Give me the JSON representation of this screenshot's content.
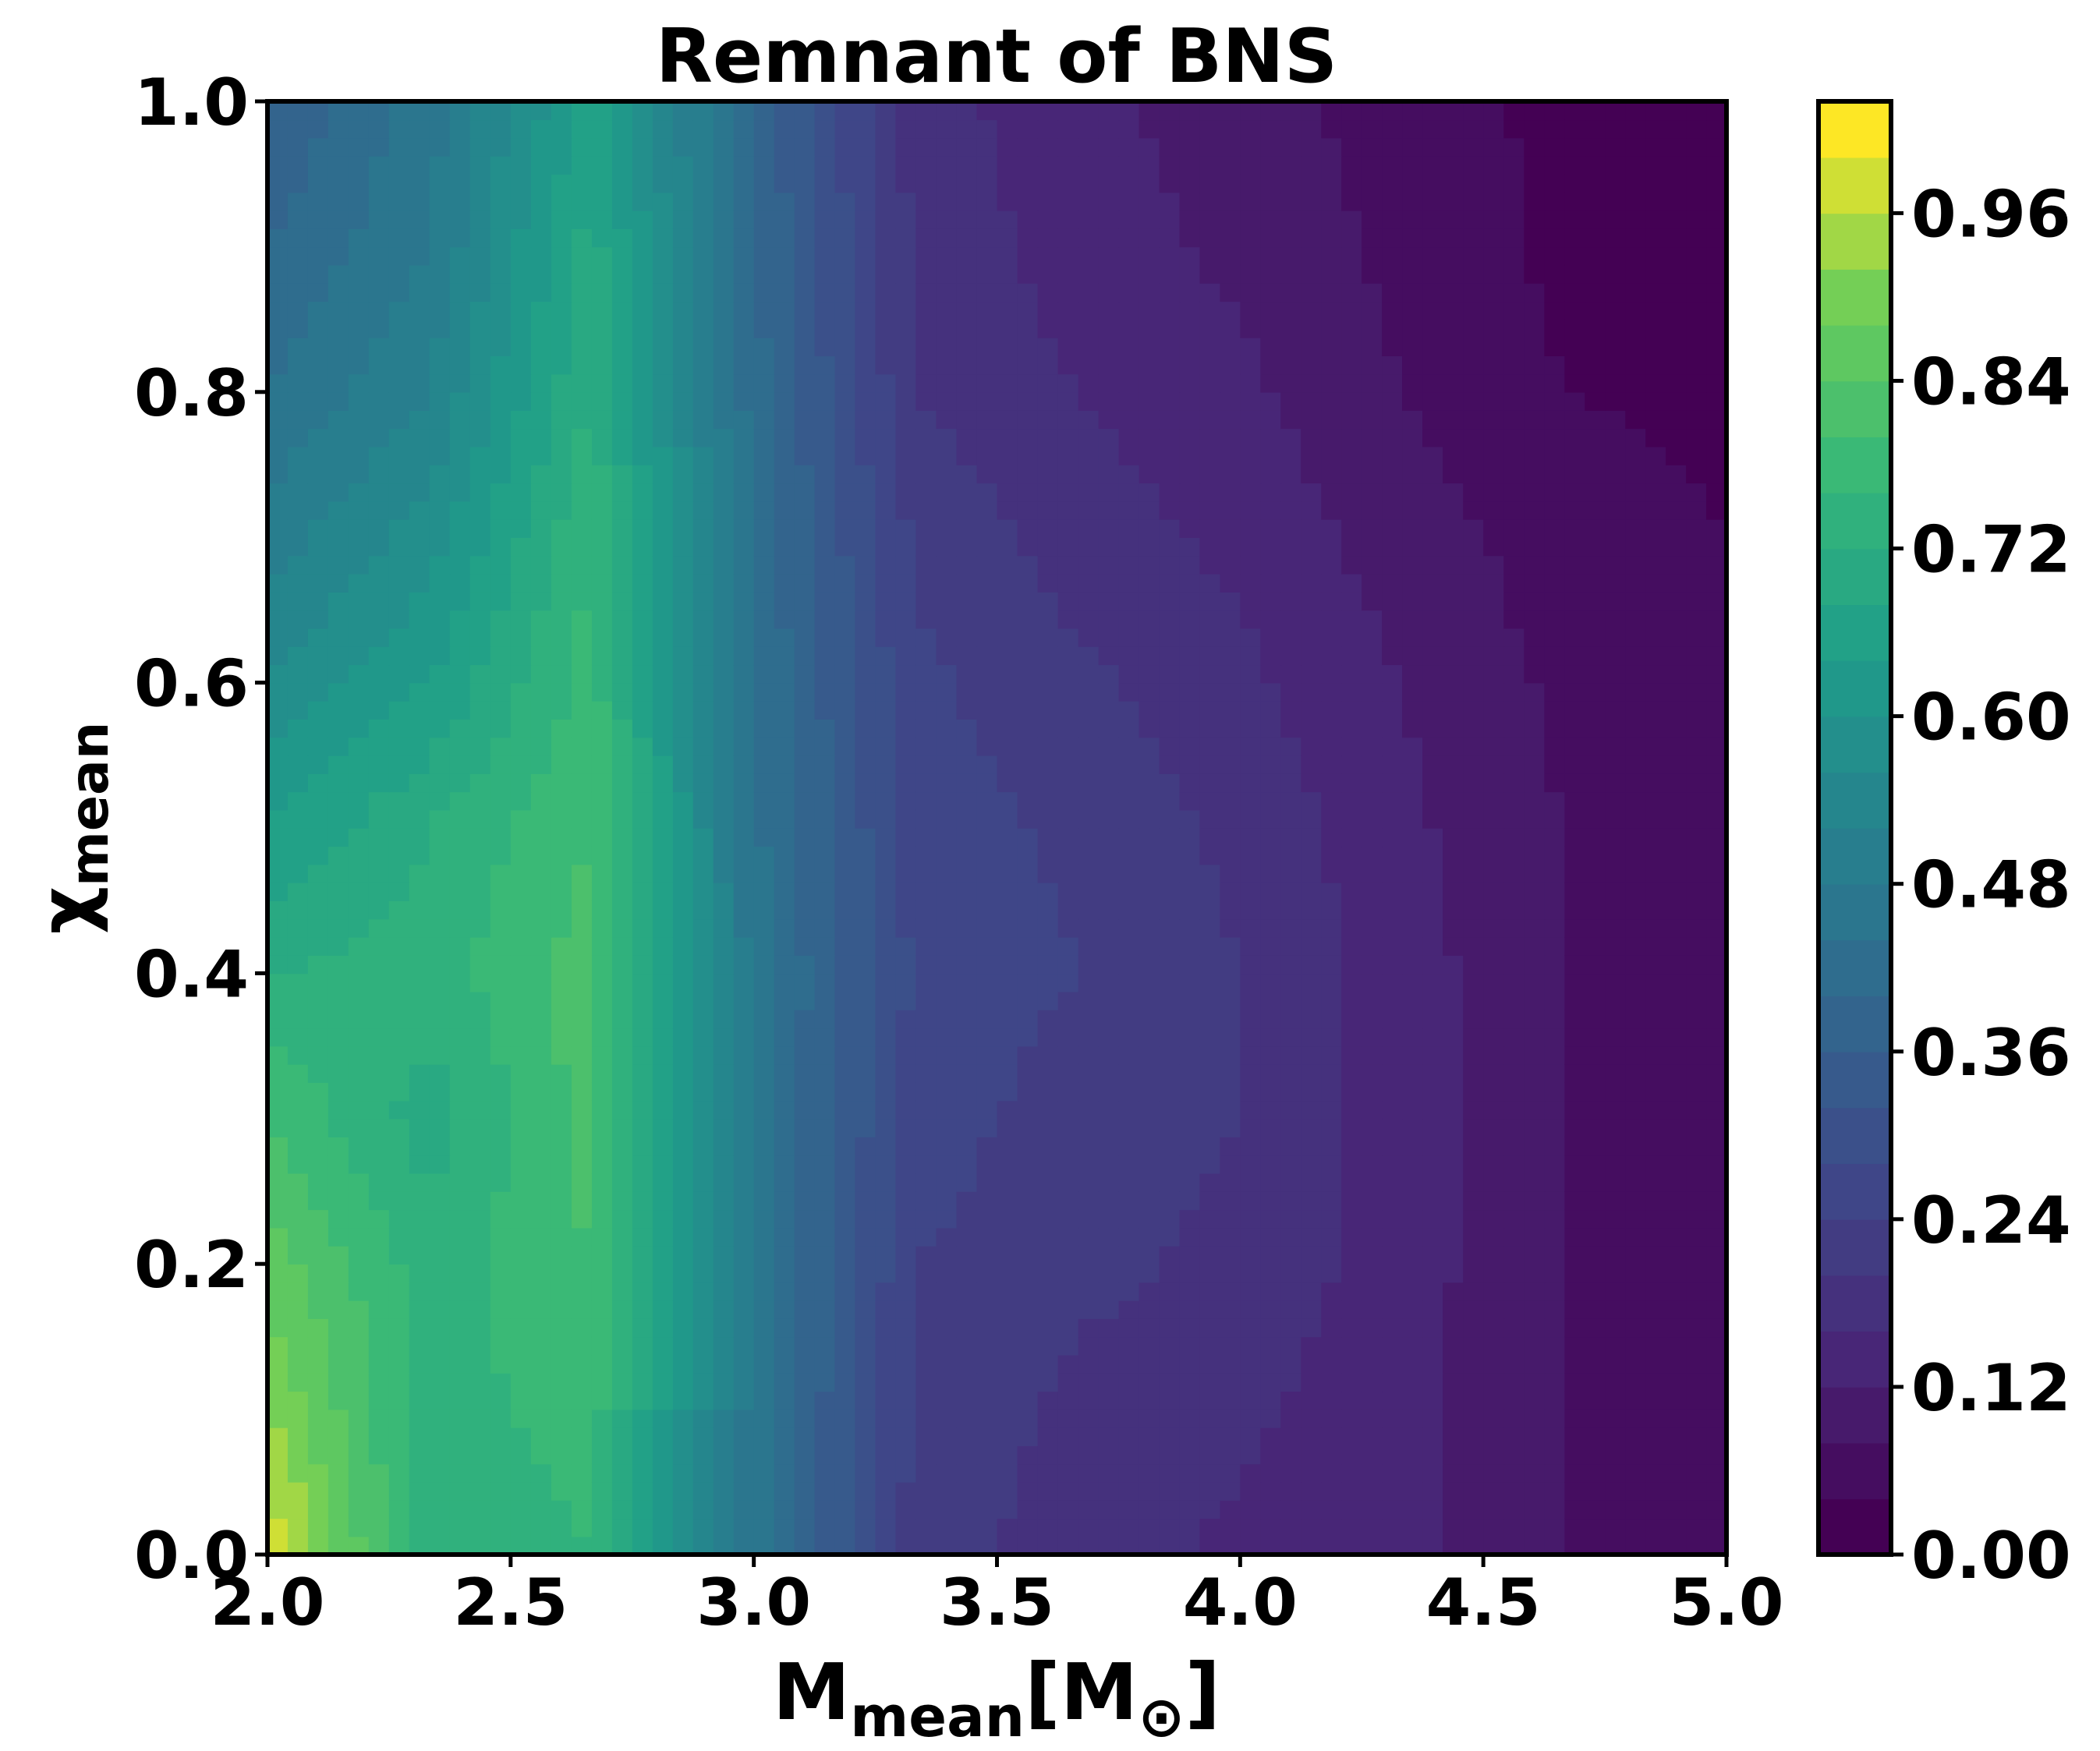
{
  "chart_data": {
    "type": "contourf",
    "title": "Remnant of BNS",
    "xlabel": [
      "M",
      "mean",
      "[M",
      "⊙",
      "]"
    ],
    "ylabel": [
      "χ",
      "mean"
    ],
    "colormap": "viridis",
    "x": [
      2.0,
      2.333,
      2.667,
      3.0,
      3.333,
      3.667,
      4.0,
      4.333,
      4.667,
      5.0
    ],
    "y": [
      0.0,
      0.1,
      0.2,
      0.3,
      0.4,
      0.5,
      0.6,
      0.7,
      0.8,
      0.9,
      1.0
    ],
    "z": [
      [
        1.0,
        0.72,
        0.76,
        0.46,
        0.22,
        0.18,
        0.15,
        0.13,
        0.08,
        0.07
      ],
      [
        0.92,
        0.74,
        0.78,
        0.46,
        0.23,
        0.19,
        0.17,
        0.13,
        0.08,
        0.07
      ],
      [
        0.86,
        0.74,
        0.8,
        0.46,
        0.24,
        0.21,
        0.19,
        0.14,
        0.08,
        0.07
      ],
      [
        0.8,
        0.7,
        0.82,
        0.46,
        0.26,
        0.22,
        0.2,
        0.14,
        0.08,
        0.07
      ],
      [
        0.72,
        0.74,
        0.82,
        0.46,
        0.27,
        0.24,
        0.2,
        0.14,
        0.08,
        0.07
      ],
      [
        0.64,
        0.72,
        0.8,
        0.45,
        0.26,
        0.23,
        0.19,
        0.13,
        0.08,
        0.06
      ],
      [
        0.56,
        0.64,
        0.78,
        0.44,
        0.25,
        0.21,
        0.17,
        0.12,
        0.07,
        0.05
      ],
      [
        0.5,
        0.58,
        0.76,
        0.43,
        0.23,
        0.18,
        0.15,
        0.1,
        0.06,
        0.04
      ],
      [
        0.44,
        0.52,
        0.72,
        0.42,
        0.2,
        0.16,
        0.13,
        0.08,
        0.04,
        0.03
      ],
      [
        0.4,
        0.48,
        0.7,
        0.4,
        0.19,
        0.14,
        0.11,
        0.07,
        0.03,
        0.02
      ],
      [
        0.36,
        0.46,
        0.66,
        0.4,
        0.18,
        0.13,
        0.1,
        0.06,
        0.03,
        0.02
      ]
    ],
    "levels": [
      0,
      0.04,
      0.08,
      0.12,
      0.16,
      0.2,
      0.24,
      0.28,
      0.32,
      0.36,
      0.4,
      0.44,
      0.48,
      0.52,
      0.56,
      0.6,
      0.64,
      0.68,
      0.72,
      0.76,
      0.8,
      0.84,
      0.88,
      0.92,
      0.96,
      1,
      1.04
    ],
    "xlim": [
      2,
      5
    ],
    "ylim": [
      0,
      1
    ],
    "xticks": [
      {
        "value": 2,
        "label": "2.0"
      },
      2.5,
      {
        "value": 3,
        "label": "3.0"
      },
      3.5,
      {
        "value": 4,
        "label": "4.0"
      },
      4.5,
      {
        "value": 5,
        "label": "5.0"
      }
    ],
    "yticks": [
      {
        "value": 0,
        "label": "0.0"
      },
      0.2,
      0.4,
      0.6,
      0.8,
      {
        "value": 1,
        "label": "1.0"
      }
    ],
    "clim": [
      0,
      1.04
    ],
    "cticks": [
      {
        "value": 0,
        "label": "0.00"
      },
      0.12,
      0.24,
      0.36,
      0.48,
      {
        "value": 0.6,
        "label": "0.60"
      },
      0.72,
      0.84,
      0.96
    ]
  }
}
